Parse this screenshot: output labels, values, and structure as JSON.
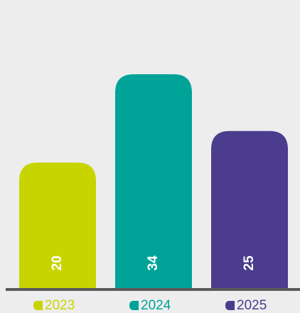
{
  "chart_data": {
    "type": "bar",
    "categories": [
      "2023",
      "2024",
      "2025"
    ],
    "values": [
      20,
      34,
      25
    ],
    "colors": [
      "#c8d400",
      "#00a398",
      "#4b3c8e"
    ]
  }
}
